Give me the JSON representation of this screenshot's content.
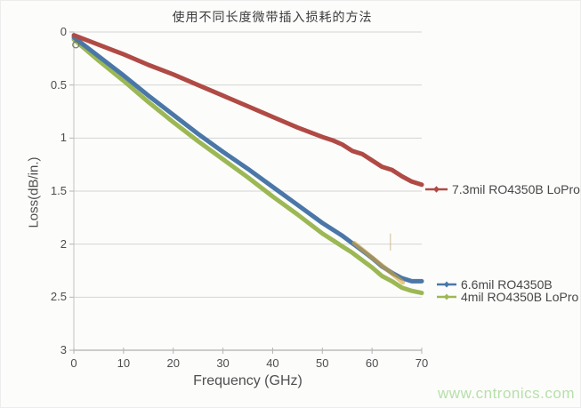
{
  "page": {
    "watermark": "www.cntronics.com"
  },
  "chart_data": {
    "type": "line",
    "title": "使用不同长度微带插入损耗的方法",
    "xlabel": "Frequency (GHz)",
    "ylabel": "Loss(dB/in.)",
    "xlim": [
      0,
      70
    ],
    "ylim": [
      0,
      3
    ],
    "y_axis_inverted_downward": true,
    "grid": "horizontal",
    "legend_position": "right-outside",
    "x_ticks": [
      0,
      10,
      20,
      30,
      40,
      50,
      60,
      70
    ],
    "y_ticks": [
      0,
      0.5,
      1,
      1.5,
      2,
      2.5,
      3
    ],
    "x": [
      0,
      5,
      10,
      15,
      20,
      25,
      30,
      35,
      40,
      45,
      50,
      52,
      54,
      56,
      58,
      60,
      62,
      64,
      66,
      68,
      70
    ],
    "series": [
      {
        "name": "4mil RO4350B LoPro",
        "color": "#9cb854",
        "values": [
          0.07,
          0.27,
          0.46,
          0.66,
          0.85,
          1.03,
          1.2,
          1.37,
          1.55,
          1.72,
          1.9,
          1.96,
          2.02,
          2.08,
          2.15,
          2.22,
          2.3,
          2.35,
          2.41,
          2.44,
          2.46
        ]
      },
      {
        "name": "6.6mil RO4350B",
        "color": "#4a77a8",
        "values": [
          0.05,
          0.23,
          0.41,
          0.6,
          0.78,
          0.96,
          1.13,
          1.29,
          1.46,
          1.63,
          1.8,
          1.86,
          1.92,
          1.99,
          2.06,
          2.13,
          2.21,
          2.27,
          2.32,
          2.35,
          2.35
        ]
      },
      {
        "name": "7.3mil RO4350B LoPro",
        "color": "#b04a44",
        "values": [
          0.03,
          0.12,
          0.21,
          0.31,
          0.4,
          0.5,
          0.6,
          0.7,
          0.8,
          0.9,
          0.99,
          1.02,
          1.06,
          1.12,
          1.15,
          1.21,
          1.27,
          1.3,
          1.36,
          1.41,
          1.44
        ]
      }
    ],
    "annotations": [
      {
        "type": "highlight-streak",
        "color": "#d8a435",
        "x1": 56.4,
        "y1": 1.99,
        "x2": 66.2,
        "y2": 2.36
      },
      {
        "type": "scratch-line",
        "color": "#cbb68d",
        "x1": 63.7,
        "y1": 1.9,
        "x2": 63.7,
        "y2": 2.06
      },
      {
        "type": "circle-marker",
        "color": "#66704d",
        "x": 0.4,
        "y": 0.12
      }
    ],
    "colors": {
      "gridline": "#d4d4d4",
      "axis": "#9b9b9b",
      "title_text": "#3c3c3c",
      "tick_text": "#4d4d4d",
      "legend_text": "#474747",
      "watermark": "#b7e0aa"
    }
  },
  "legend": {
    "items": [
      {
        "label": "7.3mil RO4350B LoPro",
        "series": 2
      },
      {
        "label": "6.6mil RO4350B",
        "series": 1
      },
      {
        "label": "4mil RO4350B LoPro",
        "series": 0
      }
    ]
  }
}
